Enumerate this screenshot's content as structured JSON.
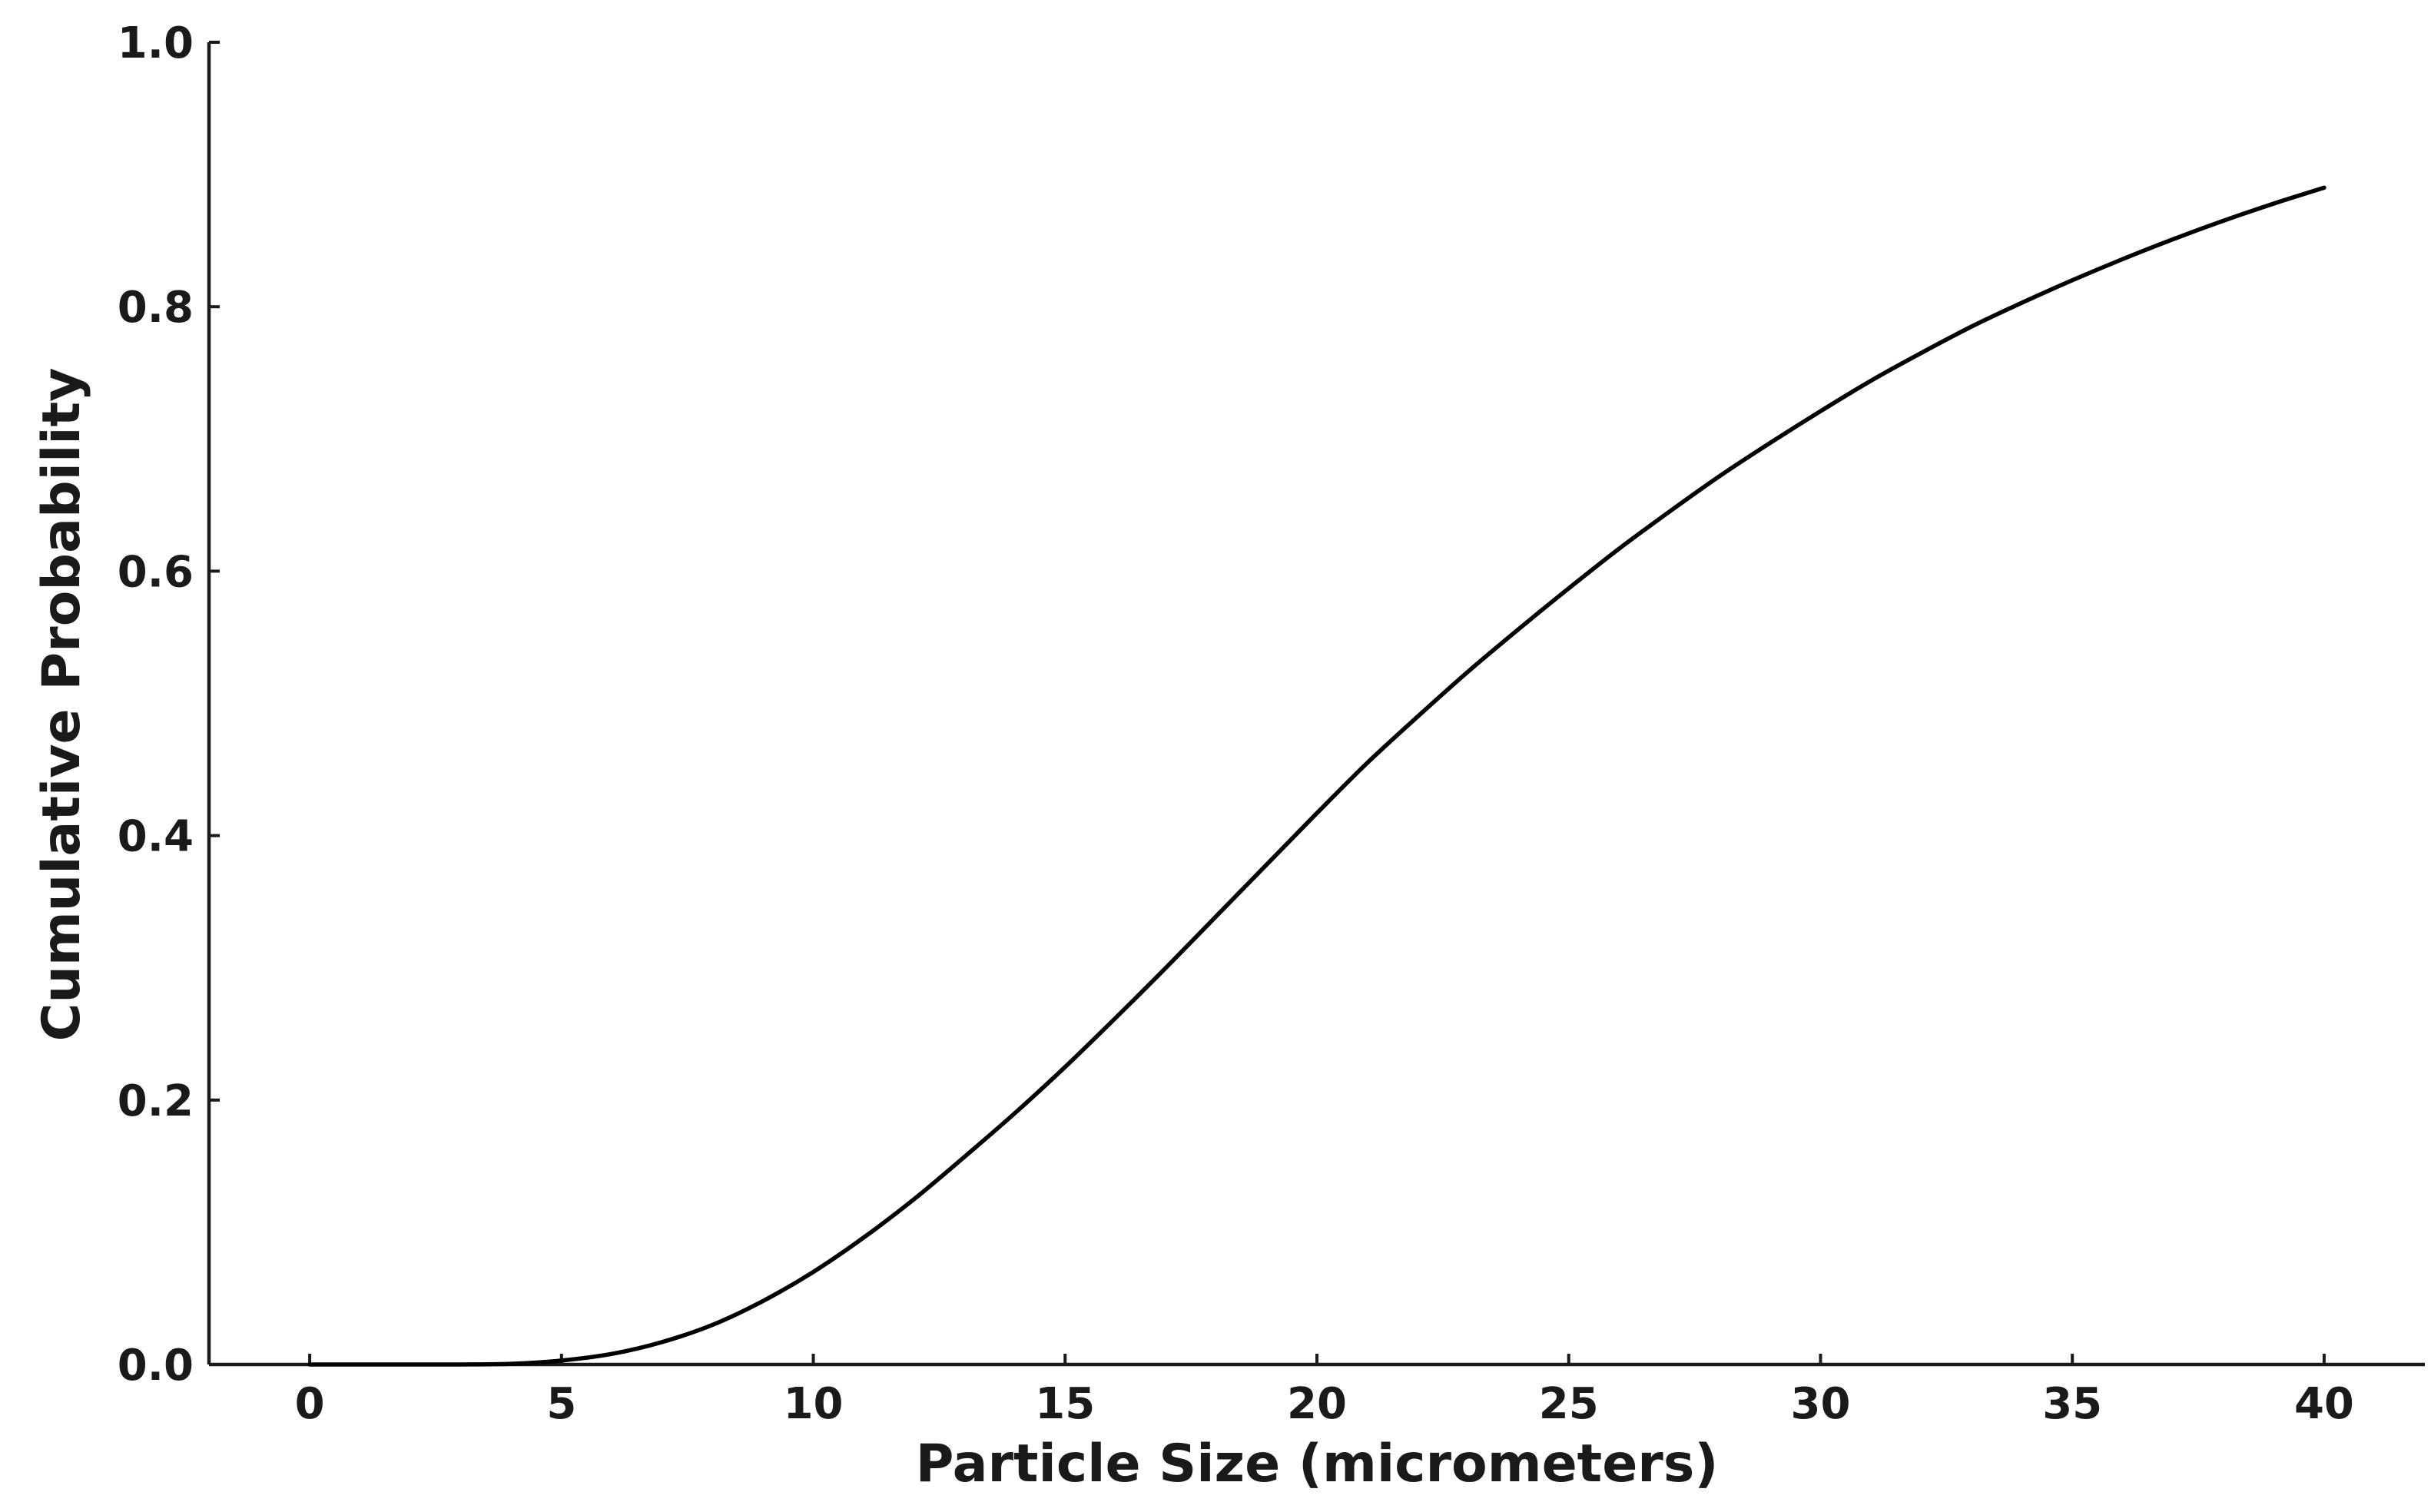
{
  "chart_data": {
    "type": "line",
    "title": "",
    "xlabel": "Particle Size (micrometers)",
    "ylabel": "Cumulative Probability",
    "xlim": [
      -2,
      42
    ],
    "ylim": [
      0,
      1.0
    ],
    "xticks": [
      0,
      5,
      10,
      15,
      20,
      25,
      30,
      35,
      40
    ],
    "xtick_labels": [
      "0",
      "5",
      "10",
      "15",
      "20",
      "25",
      "30",
      "35",
      "40"
    ],
    "yticks": [
      0.0,
      0.2,
      0.4,
      0.6,
      0.8,
      1.0
    ],
    "ytick_labels": [
      "0.0",
      "0.2",
      "0.4",
      "0.6",
      "0.8",
      "1.0"
    ],
    "grid": false,
    "legend": "none",
    "line_color": "#000000",
    "series": [
      {
        "x": [
          0,
          1,
          2,
          3,
          4,
          5,
          6,
          7,
          8,
          9,
          10,
          11,
          12,
          13,
          14,
          15,
          16,
          17,
          18,
          19,
          20,
          21,
          22,
          23,
          24,
          25,
          26,
          27,
          28,
          29,
          30,
          31,
          32,
          33,
          34,
          35,
          36,
          37,
          38,
          39,
          40
        ],
        "y": [
          0.0,
          0.0,
          0.0,
          0.0,
          0.0005,
          0.003,
          0.008,
          0.017,
          0.03,
          0.048,
          0.07,
          0.096,
          0.125,
          0.157,
          0.19,
          0.225,
          0.262,
          0.3,
          0.339,
          0.378,
          0.417,
          0.455,
          0.49,
          0.524,
          0.556,
          0.587,
          0.617,
          0.645,
          0.672,
          0.697,
          0.721,
          0.744,
          0.765,
          0.785,
          0.803,
          0.82,
          0.836,
          0.851,
          0.865,
          0.878,
          0.89
        ]
      }
    ]
  }
}
